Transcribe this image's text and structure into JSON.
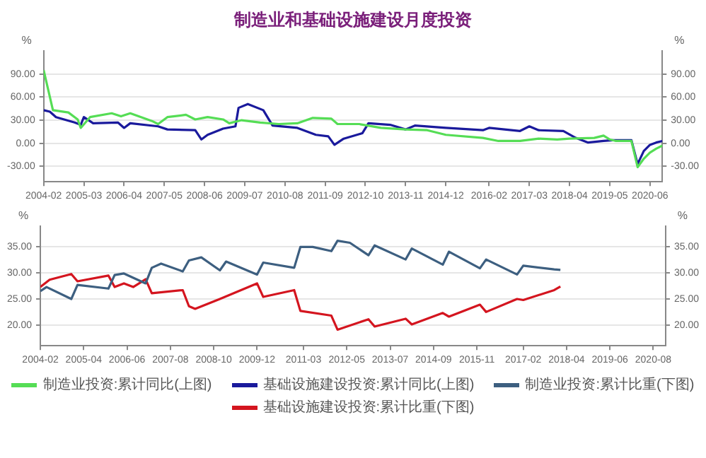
{
  "chart_data": [
    {
      "type": "line",
      "title": "制造业和基础设施建设月度投资",
      "ylabel": "%",
      "y2label": "%",
      "grid": "y",
      "legend": "bottom",
      "xlim": [
        "2004-02",
        "2020-10"
      ],
      "xticks": [
        "2004-02",
        "2005-03",
        "2006-04",
        "2007-05",
        "2008-06",
        "2009-07",
        "2010-08",
        "2011-09",
        "2012-10",
        "2013-11",
        "2014-12",
        "2016-02",
        "2017-03",
        "2018-04",
        "2019-05",
        "2020-06"
      ],
      "ylim": [
        -50,
        120
      ],
      "yticks": [
        {
          "value": -30,
          "label": "-30.00"
        },
        {
          "value": 0,
          "label": "0.00"
        },
        {
          "value": 30,
          "label": "30.00"
        },
        {
          "value": 60,
          "label": "60.00"
        },
        {
          "value": 90,
          "label": "90.00"
        }
      ],
      "y2lim": [
        -50,
        120
      ],
      "y2ticks": [
        {
          "value": -30,
          "label": "-30.00"
        },
        {
          "value": 0,
          "label": "0.00"
        },
        {
          "value": 30,
          "label": "30.00"
        },
        {
          "value": 60,
          "label": "60.00"
        },
        {
          "value": 90,
          "label": "90.00"
        }
      ],
      "series": [
        {
          "name": "制造业投资:累计同比(上图)",
          "color": "#55dd55",
          "x": [
            "2004-02",
            "2004-05",
            "2004-10",
            "2005-01",
            "2005-02",
            "2005-05",
            "2005-12",
            "2006-03",
            "2006-06",
            "2007-01",
            "2007-03",
            "2007-06",
            "2007-12",
            "2008-03",
            "2008-07",
            "2008-12",
            "2009-02",
            "2009-06",
            "2009-12",
            "2010-06",
            "2010-12",
            "2011-05",
            "2011-11",
            "2012-01",
            "2012-08",
            "2013-03",
            "2013-11",
            "2014-06",
            "2014-12",
            "2015-12",
            "2016-05",
            "2016-12",
            "2017-06",
            "2017-12",
            "2018-04",
            "2018-12",
            "2019-03",
            "2019-05",
            "2019-07",
            "2019-12",
            "2020-02",
            "2020-04",
            "2020-06",
            "2020-08",
            "2020-10"
          ],
          "values": [
            95,
            43,
            40,
            31,
            20,
            34,
            39,
            35,
            39,
            29,
            25,
            34,
            37,
            31,
            34,
            31,
            26,
            30,
            27,
            25,
            26,
            33,
            32,
            25,
            25,
            20,
            18,
            17,
            11,
            7,
            3,
            3,
            6,
            5,
            6,
            7,
            10,
            5,
            3,
            3,
            -31,
            -20,
            -12,
            -7,
            -3
          ]
        },
        {
          "name": "基础设施建设投资:累计同比(上图)",
          "color": "#1a1a9c",
          "x": [
            "2004-02",
            "2004-04",
            "2004-06",
            "2004-12",
            "2005-02",
            "2005-03",
            "2005-06",
            "2006-02",
            "2006-04",
            "2006-06",
            "2007-03",
            "2007-06",
            "2008-03",
            "2008-05",
            "2008-07",
            "2008-12",
            "2009-04",
            "2009-05",
            "2009-08",
            "2010-01",
            "2010-04",
            "2010-12",
            "2011-06",
            "2011-10",
            "2011-12",
            "2012-03",
            "2012-09",
            "2012-11",
            "2013-06",
            "2013-11",
            "2014-02",
            "2014-12",
            "2015-12",
            "2016-02",
            "2016-12",
            "2017-03",
            "2017-06",
            "2018-02",
            "2018-06",
            "2018-10",
            "2019-03",
            "2019-06",
            "2019-12",
            "2020-02",
            "2020-04",
            "2020-06",
            "2020-08",
            "2020-10"
          ],
          "values": [
            43,
            41,
            34,
            27,
            24,
            34,
            26,
            27,
            20,
            26,
            22,
            18,
            17,
            5,
            11,
            19,
            22,
            46,
            51,
            43,
            23,
            20,
            11,
            9,
            -2,
            6,
            13,
            26,
            24,
            18,
            23,
            20,
            17,
            20,
            16,
            22,
            17,
            16,
            7,
            1,
            3,
            4,
            4,
            -27,
            -10,
            -2,
            1,
            3
          ]
        }
      ]
    },
    {
      "type": "line",
      "ylabel": "%",
      "y2label": "%",
      "grid": "y",
      "legend": "bottom",
      "xlim": [
        "2004-02",
        "2020-12"
      ],
      "xticks": [
        "2004-02",
        "2005-04",
        "2006-06",
        "2007-08",
        "2008-10",
        "2009-12",
        "2011-03",
        "2012-05",
        "2013-07",
        "2014-09",
        "2015-11",
        "2017-02",
        "2018-04",
        "2019-06",
        "2020-08"
      ],
      "ylim": [
        16,
        39
      ],
      "yticks": [
        {
          "value": 20,
          "label": "20.00"
        },
        {
          "value": 25,
          "label": "25.00"
        },
        {
          "value": 30,
          "label": "30.00"
        },
        {
          "value": 35,
          "label": "35.00"
        }
      ],
      "y2lim": [
        16,
        39
      ],
      "y2ticks": [
        {
          "value": 20,
          "label": "20.00"
        },
        {
          "value": 25,
          "label": "25.00"
        },
        {
          "value": 30,
          "label": "30.00"
        },
        {
          "value": 35,
          "label": "35.00"
        }
      ],
      "series": [
        {
          "name": "制造业投资:累计比重(下图)",
          "color": "#3d5f80",
          "x": [
            "2004-02",
            "2004-04",
            "2004-12",
            "2005-02",
            "2005-12",
            "2006-02",
            "2006-05",
            "2006-12",
            "2007-02",
            "2007-05",
            "2007-12",
            "2008-02",
            "2008-06",
            "2008-12",
            "2009-02",
            "2009-12",
            "2010-02",
            "2010-12",
            "2011-02",
            "2011-06",
            "2011-12",
            "2012-02",
            "2012-06",
            "2012-12",
            "2013-02",
            "2013-12",
            "2014-02",
            "2014-12",
            "2015-02",
            "2015-12",
            "2016-02",
            "2016-12",
            "2017-02",
            "2017-12",
            "2018-02"
          ],
          "values": [
            26.5,
            27.3,
            25.0,
            27.7,
            27.0,
            29.6,
            29.9,
            28.0,
            31.0,
            31.8,
            30.3,
            32.4,
            33.0,
            30.5,
            32.2,
            29.7,
            32.0,
            31.0,
            35.0,
            35.0,
            34.2,
            36.2,
            35.8,
            33.4,
            35.3,
            32.6,
            34.7,
            31.6,
            34.1,
            30.9,
            32.6,
            29.7,
            31.4,
            30.7,
            30.6
          ]
        },
        {
          "name": "基础设施建设投资:累计比重(下图)",
          "color": "#d4151f",
          "x": [
            "2004-02",
            "2004-05",
            "2004-12",
            "2005-02",
            "2005-12",
            "2006-02",
            "2006-05",
            "2006-08",
            "2006-12",
            "2007-02",
            "2007-12",
            "2008-02",
            "2008-04",
            "2008-12",
            "2009-12",
            "2010-02",
            "2010-12",
            "2011-02",
            "2011-12",
            "2012-02",
            "2012-12",
            "2013-02",
            "2013-12",
            "2014-02",
            "2014-12",
            "2015-02",
            "2015-12",
            "2016-02",
            "2016-12",
            "2017-02",
            "2017-12",
            "2018-02"
          ],
          "values": [
            27.3,
            28.7,
            29.8,
            28.4,
            29.5,
            27.3,
            28.0,
            27.3,
            28.8,
            26.1,
            26.7,
            23.6,
            23.1,
            25.0,
            28.0,
            25.4,
            26.7,
            22.7,
            21.8,
            19.1,
            21.1,
            19.7,
            21.2,
            20.1,
            22.3,
            21.6,
            23.9,
            22.5,
            25.0,
            24.8,
            26.7,
            27.4
          ]
        }
      ]
    }
  ]
}
